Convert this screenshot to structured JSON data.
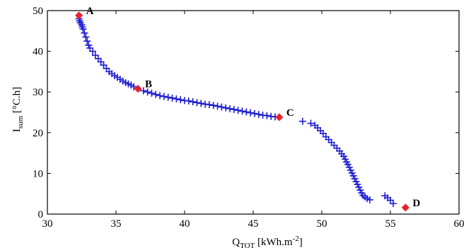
{
  "chart_data": {
    "type": "scatter",
    "title": "",
    "xlabel": {
      "main": "Q",
      "sub": "TOT",
      "unit_pre": " [kWh.m",
      "unit_sup": "-2",
      "unit_post": "]"
    },
    "ylabel": {
      "main": "I",
      "sub": "sum",
      "unit": " [°C.h]"
    },
    "xlim": [
      30,
      60
    ],
    "ylim": [
      0,
      50
    ],
    "xticks": [
      30,
      35,
      40,
      45,
      50,
      55,
      60
    ],
    "yticks": [
      0,
      10,
      20,
      30,
      40,
      50
    ],
    "xtick_labels": [
      "30",
      "35",
      "40",
      "45",
      "50",
      "55",
      "60"
    ],
    "ytick_labels": [
      "0",
      "10",
      "20",
      "30",
      "40",
      "50"
    ],
    "grid": false,
    "series": [
      {
        "marker": "plus",
        "color": "#1f1fd0",
        "x": [
          32.3,
          32.35,
          32.4,
          32.5,
          32.55,
          32.6,
          32.7,
          32.8,
          32.9,
          33.0,
          33.1,
          33.3,
          33.5,
          33.7,
          33.9,
          34.1,
          34.3,
          34.5,
          34.7,
          34.9,
          35.1,
          35.3,
          35.5,
          35.7,
          35.9,
          36.1,
          36.3,
          36.6,
          37.0,
          37.3,
          37.6,
          37.9,
          38.2,
          38.5,
          38.8,
          39.1,
          39.4,
          39.7,
          40.0,
          40.3,
          40.6,
          40.9,
          41.2,
          41.5,
          41.8,
          42.1,
          42.4,
          42.7,
          43.0,
          43.3,
          43.6,
          43.9,
          44.2,
          44.5,
          44.8,
          45.1,
          45.4,
          45.7,
          46.0,
          46.3,
          46.6,
          48.6,
          49.2,
          49.5,
          49.7,
          49.9,
          50.1,
          50.3,
          50.5,
          50.7,
          50.9,
          51.1,
          51.3,
          51.45,
          51.6,
          51.7,
          51.8,
          51.9,
          52.0,
          52.1,
          52.2,
          52.3,
          52.4,
          52.5,
          52.6,
          52.7,
          52.8,
          52.9,
          53.0,
          53.15,
          53.3,
          53.5,
          54.6,
          54.8,
          55.0,
          55.2
        ],
        "y": [
          48.0,
          47.5,
          47.0,
          46.5,
          46.0,
          45.5,
          44.5,
          43.5,
          42.5,
          41.5,
          40.8,
          40.0,
          39.0,
          38.2,
          37.4,
          36.6,
          35.8,
          35.0,
          34.5,
          34.0,
          33.6,
          33.1,
          32.7,
          32.3,
          32.0,
          31.7,
          31.3,
          30.8,
          30.3,
          30.0,
          29.7,
          29.4,
          29.1,
          28.9,
          28.7,
          28.5,
          28.3,
          28.1,
          27.9,
          27.8,
          27.6,
          27.4,
          27.2,
          27.0,
          26.9,
          26.7,
          26.5,
          26.3,
          26.1,
          25.9,
          25.7,
          25.5,
          25.3,
          25.1,
          24.9,
          24.7,
          24.5,
          24.3,
          24.2,
          24.0,
          23.9,
          22.8,
          22.3,
          21.8,
          21.2,
          20.5,
          19.8,
          19.0,
          18.3,
          17.6,
          16.9,
          16.2,
          15.5,
          14.8,
          14.2,
          13.5,
          12.8,
          12.2,
          11.5,
          10.8,
          10.1,
          9.4,
          8.7,
          8.0,
          7.3,
          6.6,
          5.9,
          5.2,
          4.6,
          4.2,
          3.8,
          3.5,
          4.5,
          4.0,
          3.4,
          2.6
        ]
      }
    ],
    "highlights": [
      {
        "label": "A",
        "x": 32.3,
        "y": 48.8,
        "color": "#e8232a"
      },
      {
        "label": "B",
        "x": 36.6,
        "y": 30.8,
        "color": "#e8232a"
      },
      {
        "label": "C",
        "x": 46.9,
        "y": 23.8,
        "color": "#e8232a"
      },
      {
        "label": "D",
        "x": 56.1,
        "y": 1.6,
        "color": "#e8232a"
      }
    ]
  }
}
